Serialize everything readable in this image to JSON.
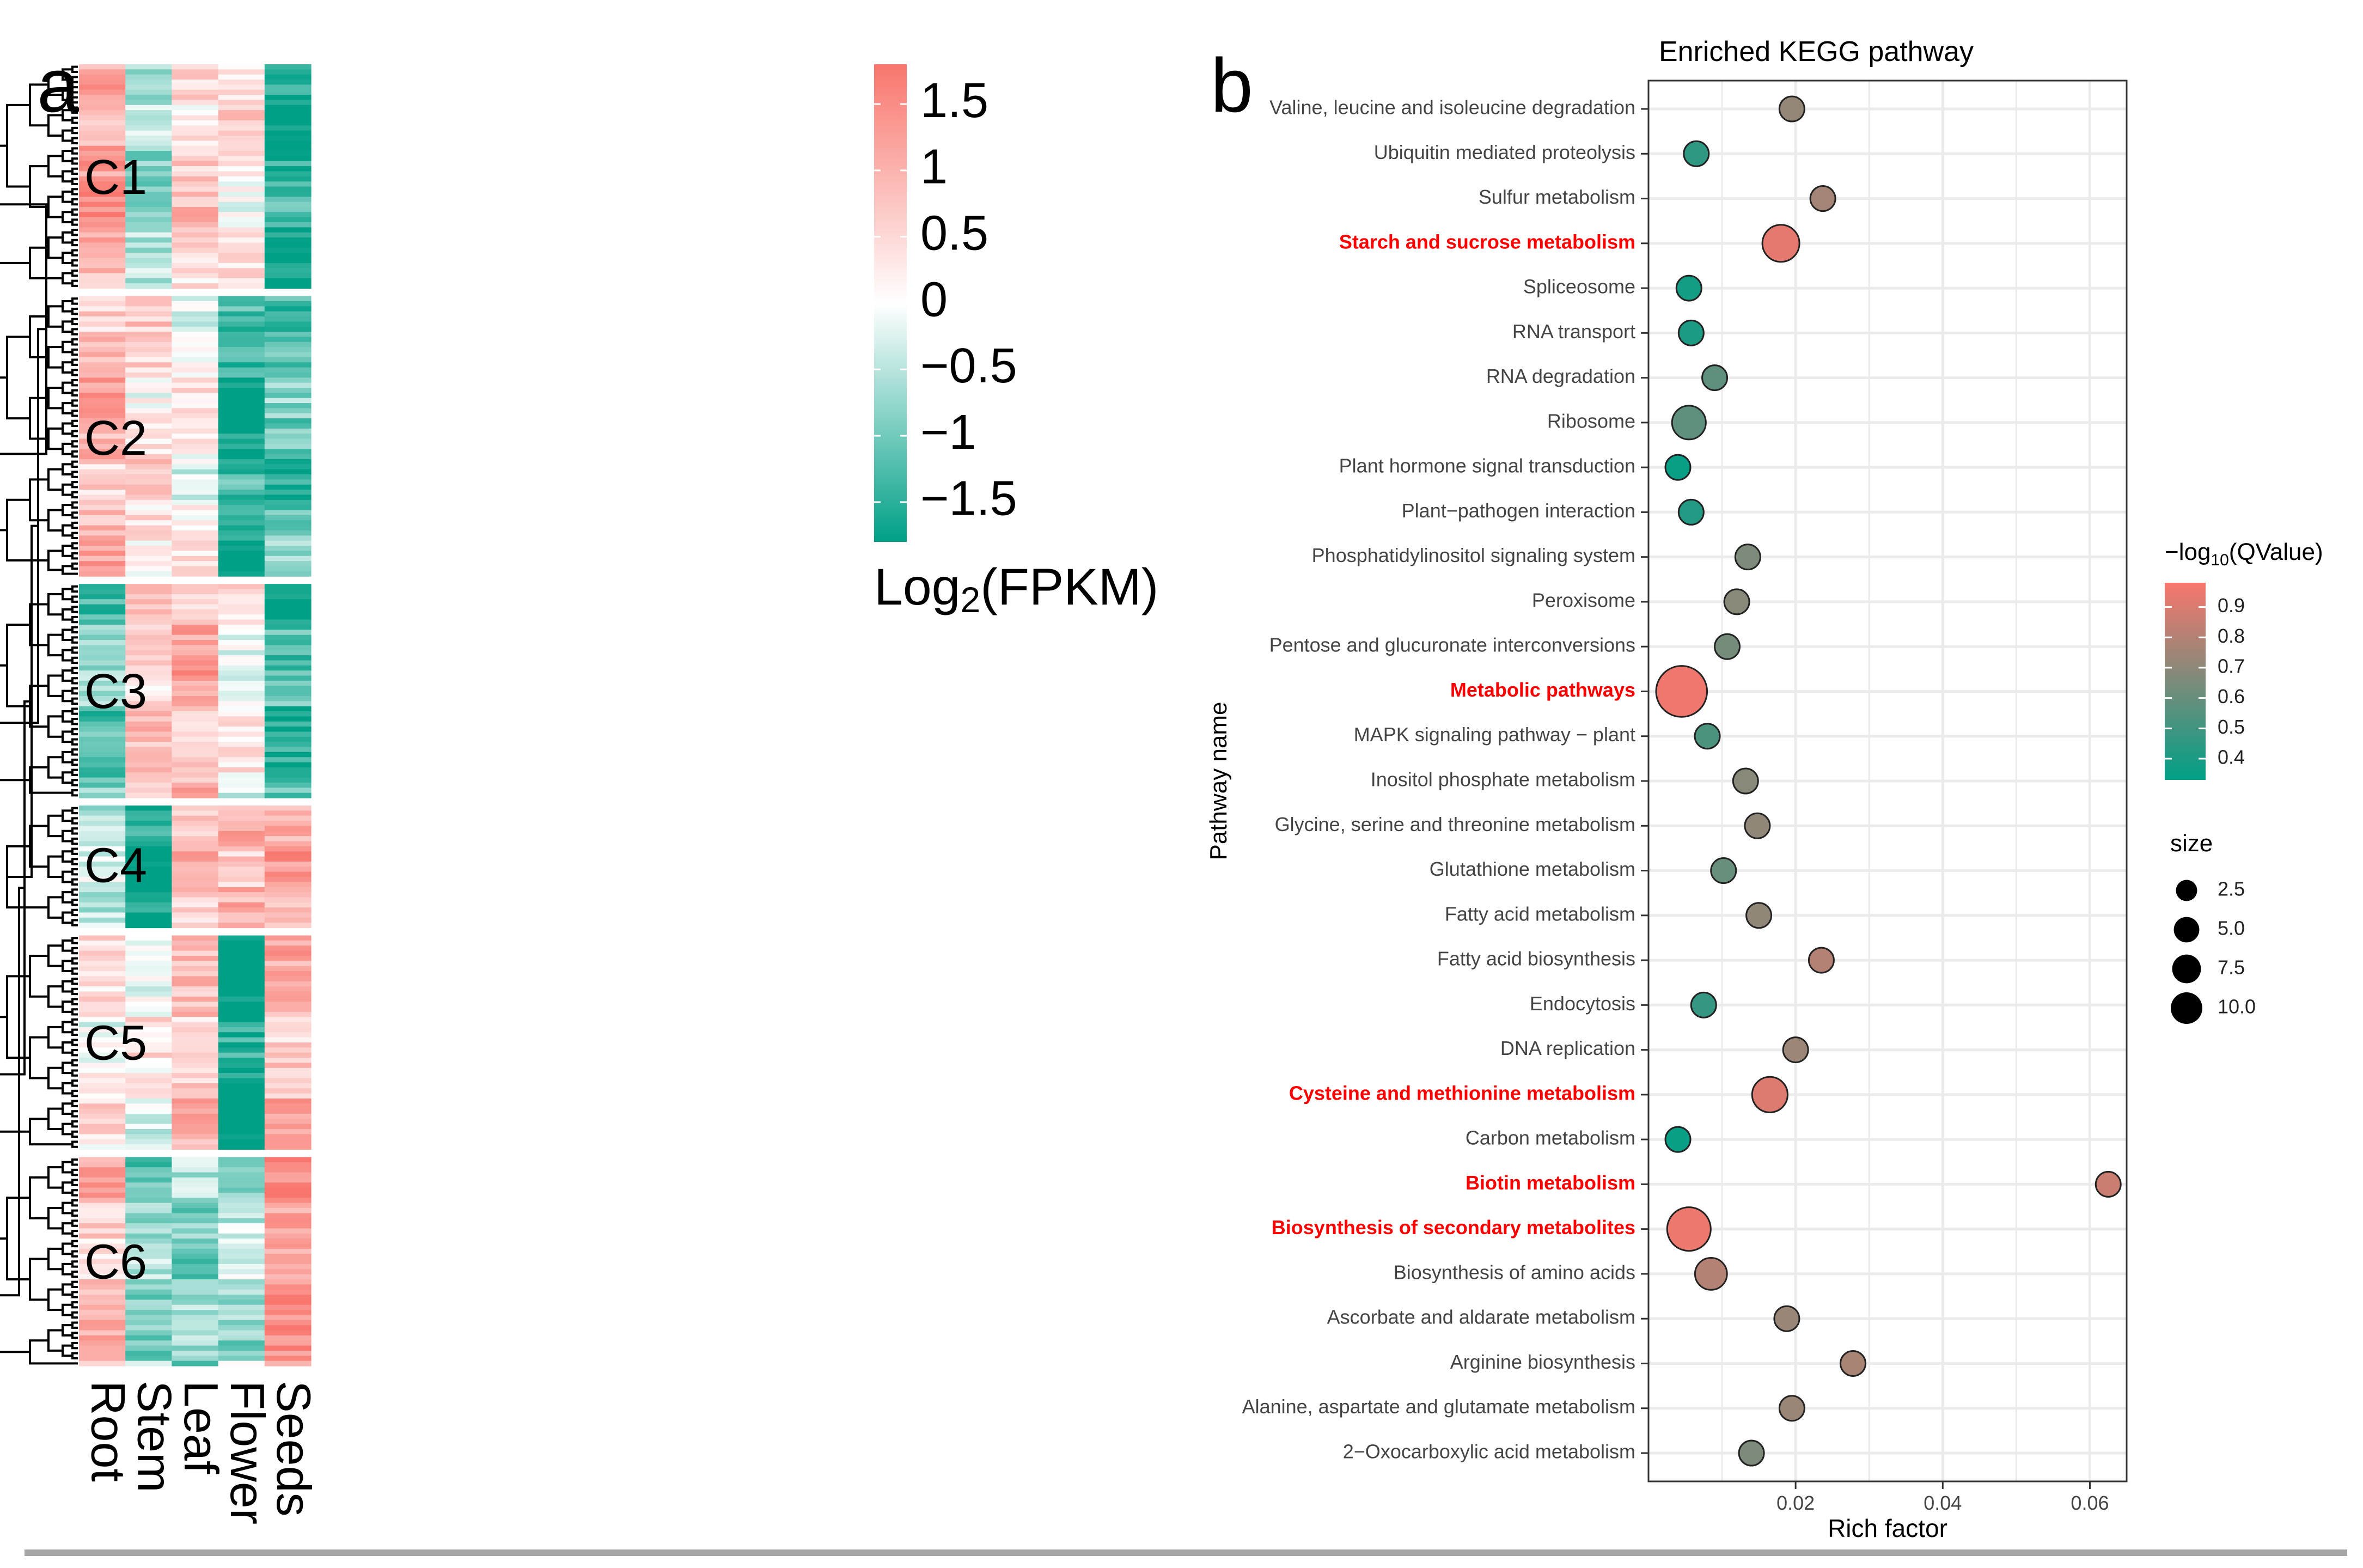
{
  "colors": {
    "high": "#F8766D",
    "mid": "#FFFFFF",
    "low": "#00A087",
    "highlight": "#FF0000",
    "grid": "#EBEBEB",
    "axis": "#333333"
  },
  "chart_data": [
    {
      "type": "heatmap",
      "panel_label": "a",
      "columns": [
        "Root",
        "Stem",
        "Leaf",
        "Flower",
        "Seeds"
      ],
      "legend": {
        "title_main": "Log",
        "title_sub": "2",
        "title_rest": "(FPKM)",
        "ticks": [
          "1.5",
          "1",
          "0.5",
          "0",
          "−0.5",
          "−1",
          "−1.5"
        ],
        "tick_values": [
          1.5,
          1,
          0.5,
          0,
          -0.5,
          -1,
          -1.5
        ],
        "range": [
          -1.8,
          1.8
        ]
      },
      "clusters": [
        {
          "name": "C1",
          "rows": 44,
          "base": [
            1.2,
            -0.8,
            0.6,
            0.3,
            -1.6
          ]
        },
        {
          "name": "C2",
          "rows": 55,
          "base": [
            0.9,
            0.4,
            0.1,
            -1.6,
            -1.1
          ]
        },
        {
          "name": "C3",
          "rows": 42,
          "base": [
            -1.0,
            0.6,
            1.0,
            0.1,
            -1.4
          ]
        },
        {
          "name": "C4",
          "rows": 24,
          "base": [
            -0.5,
            -1.6,
            0.7,
            1.0,
            1.0
          ]
        },
        {
          "name": "C5",
          "rows": 42,
          "base": [
            0.2,
            0.1,
            0.7,
            -1.8,
            0.9
          ]
        },
        {
          "name": "C6",
          "rows": 41,
          "base": [
            0.8,
            -0.8,
            -0.8,
            -0.6,
            1.3
          ]
        }
      ]
    },
    {
      "type": "scatter",
      "panel_label": "b",
      "title": "Enriched KEGG pathway",
      "xlabel": "Rich factor",
      "ylabel": "Pathway name",
      "xlim": [
        0,
        0.065
      ],
      "xticks": [
        0.02,
        0.04,
        0.06
      ],
      "xtick_labels": [
        "0.02",
        "0.04",
        "0.06"
      ],
      "color_legend": {
        "title": "−log",
        "title_sub": "10",
        "title_rest": "(QValue)",
        "ticks": [
          "0.9",
          "0.8",
          "0.7",
          "0.6",
          "0.5",
          "0.4"
        ],
        "tick_values": [
          0.9,
          0.8,
          0.7,
          0.6,
          0.5,
          0.4
        ],
        "range": [
          0.33,
          0.98
        ]
      },
      "size_legend": {
        "title": "size",
        "labels": [
          "2.5",
          "5.0",
          "7.5",
          "10.0"
        ],
        "values": [
          2.5,
          5.0,
          7.5,
          10.0
        ]
      },
      "pathways": [
        {
          "name": "Valine, leucine and isoleucine degradation",
          "x": 0.0195,
          "q": 0.72,
          "size": 1.0,
          "highlight": false
        },
        {
          "name": "Ubiquitin mediated proteolysis",
          "x": 0.0065,
          "q": 0.45,
          "size": 1.0,
          "highlight": false
        },
        {
          "name": "Sulfur metabolism",
          "x": 0.0237,
          "q": 0.76,
          "size": 1.0,
          "highlight": false
        },
        {
          "name": "Starch and sucrose metabolism",
          "x": 0.018,
          "q": 0.93,
          "size": 4.0,
          "highlight": true
        },
        {
          "name": "Spliceosome",
          "x": 0.0055,
          "q": 0.38,
          "size": 1.0,
          "highlight": false
        },
        {
          "name": "RNA transport",
          "x": 0.0058,
          "q": 0.4,
          "size": 1.0,
          "highlight": false
        },
        {
          "name": "RNA degradation",
          "x": 0.009,
          "q": 0.58,
          "size": 1.0,
          "highlight": false
        },
        {
          "name": "Ribosome",
          "x": 0.0055,
          "q": 0.58,
          "size": 3.0,
          "highlight": false
        },
        {
          "name": "Plant hormone signal transduction",
          "x": 0.004,
          "q": 0.35,
          "size": 1.0,
          "highlight": false
        },
        {
          "name": "Plant−pathogen interaction",
          "x": 0.0058,
          "q": 0.42,
          "size": 1.0,
          "highlight": false
        },
        {
          "name": "Phosphatidylinositol signaling system",
          "x": 0.0135,
          "q": 0.66,
          "size": 1.0,
          "highlight": false
        },
        {
          "name": "Peroxisome",
          "x": 0.012,
          "q": 0.69,
          "size": 1.0,
          "highlight": false
        },
        {
          "name": "Pentose and glucuronate interconversions",
          "x": 0.0107,
          "q": 0.64,
          "size": 1.0,
          "highlight": false
        },
        {
          "name": "Metabolic pathways",
          "x": 0.0045,
          "q": 0.96,
          "size": 10.0,
          "highlight": true
        },
        {
          "name": "MAPK signaling pathway − plant",
          "x": 0.008,
          "q": 0.53,
          "size": 1.0,
          "highlight": false
        },
        {
          "name": "Inositol phosphate metabolism",
          "x": 0.0132,
          "q": 0.69,
          "size": 1.0,
          "highlight": false
        },
        {
          "name": "Glycine, serine and threonine metabolism",
          "x": 0.0148,
          "q": 0.71,
          "size": 1.0,
          "highlight": false
        },
        {
          "name": "Glutathione metabolism",
          "x": 0.0102,
          "q": 0.6,
          "size": 1.0,
          "highlight": false
        },
        {
          "name": "Fatty acid metabolism",
          "x": 0.015,
          "q": 0.71,
          "size": 1.0,
          "highlight": false
        },
        {
          "name": "Fatty acid biosynthesis",
          "x": 0.0235,
          "q": 0.8,
          "size": 1.0,
          "highlight": false
        },
        {
          "name": "Endocytosis",
          "x": 0.0075,
          "q": 0.47,
          "size": 1.0,
          "highlight": false
        },
        {
          "name": "DNA replication",
          "x": 0.02,
          "q": 0.74,
          "size": 1.0,
          "highlight": false
        },
        {
          "name": "Cysteine and methionine metabolism",
          "x": 0.0165,
          "q": 0.91,
          "size": 3.5,
          "highlight": true
        },
        {
          "name": "Carbon metabolism",
          "x": 0.004,
          "q": 0.35,
          "size": 1.0,
          "highlight": false
        },
        {
          "name": "Biotin metabolism",
          "x": 0.0625,
          "q": 0.86,
          "size": 1.0,
          "highlight": true
        },
        {
          "name": "Biosynthesis of secondary metabolites",
          "x": 0.0055,
          "q": 0.95,
          "size": 6.5,
          "highlight": true
        },
        {
          "name": "Biosynthesis of amino acids",
          "x": 0.0085,
          "q": 0.8,
          "size": 2.5,
          "highlight": false
        },
        {
          "name": "Ascorbate and aldarate metabolism",
          "x": 0.0188,
          "q": 0.73,
          "size": 1.0,
          "highlight": false
        },
        {
          "name": "Arginine biosynthesis",
          "x": 0.0278,
          "q": 0.77,
          "size": 1.0,
          "highlight": false
        },
        {
          "name": "Alanine, aspartate and glutamate metabolism",
          "x": 0.0195,
          "q": 0.73,
          "size": 1.0,
          "highlight": false
        },
        {
          "name": "2−Oxocarboxylic acid metabolism",
          "x": 0.014,
          "q": 0.66,
          "size": 1.0,
          "highlight": false
        }
      ]
    }
  ]
}
